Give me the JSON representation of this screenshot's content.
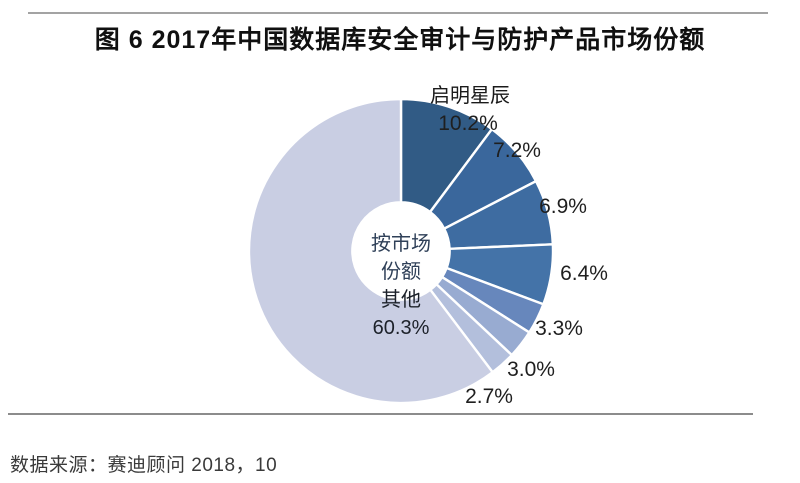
{
  "chart_data": {
    "type": "pie",
    "subtype": "donut",
    "hole_ratio": 0.32,
    "direction": "clockwise",
    "start_angle_deg": 0,
    "title": "图 6  2017年中国数据库安全审计与防护产品市场份额",
    "center_label": [
      "按市场",
      "份额"
    ],
    "unit": "%",
    "slices": [
      {
        "name": "启明星辰",
        "value": 10.2,
        "color": "#315b85"
      },
      {
        "name": "",
        "value": 7.2,
        "color": "#3a679c"
      },
      {
        "name": "",
        "value": 6.9,
        "color": "#3e6ca1"
      },
      {
        "name": "",
        "value": 6.4,
        "color": "#4473a8"
      },
      {
        "name": "",
        "value": 3.3,
        "color": "#6787bc"
      },
      {
        "name": "",
        "value": 3.0,
        "color": "#98abd1"
      },
      {
        "name": "",
        "value": 2.7,
        "color": "#b3bfdc"
      },
      {
        "name": "其他",
        "value": 60.3,
        "color": "#c9cee3"
      }
    ]
  },
  "source": {
    "text": "数据来源：赛迪顾问  2018，10"
  }
}
